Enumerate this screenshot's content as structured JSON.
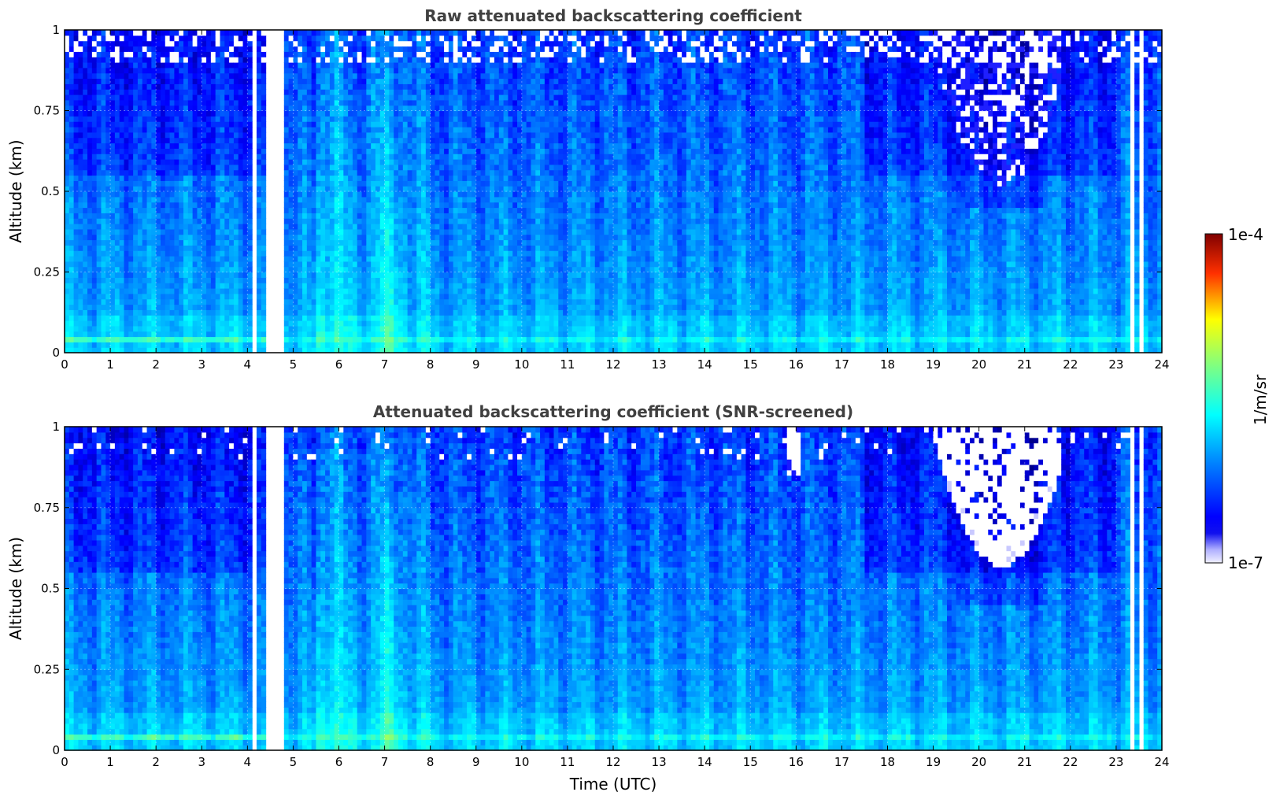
{
  "chart_data": [
    {
      "type": "heatmap",
      "title": "Raw attenuated backscattering coefficient",
      "xlabel": "",
      "ylabel": "Altitude (km)",
      "xlim": [
        0,
        24
      ],
      "ylim": [
        0,
        1
      ],
      "x_ticks": [
        "0",
        "1",
        "2",
        "3",
        "4",
        "5",
        "6",
        "7",
        "8",
        "9",
        "10",
        "11",
        "12",
        "13",
        "14",
        "15",
        "16",
        "17",
        "18",
        "19",
        "20",
        "21",
        "22",
        "23",
        "24"
      ],
      "y_ticks": [
        "0",
        "0.25",
        "0.5",
        "0.75",
        "1"
      ],
      "grid": true,
      "screened": false,
      "data_gaps_utc": [
        [
          4.15,
          4.2
        ],
        [
          4.28,
          4.33
        ],
        [
          4.4,
          4.46
        ],
        [
          4.5,
          4.55
        ],
        [
          4.6,
          4.75
        ],
        [
          23.35,
          23.45
        ],
        [
          23.52,
          23.58
        ]
      ],
      "features": {
        "surface_layer_peak_km": 0.04,
        "enhanced_band_utc": [
          5.5,
          8.0
        ],
        "noise_region": {
          "start_utc": 18.6,
          "end_utc": 21.8,
          "min_altitude_km": 0.52,
          "center_utc": 20.5
        }
      }
    },
    {
      "type": "heatmap",
      "title": "Attenuated backscattering coefficient (SNR-screened)",
      "xlabel": "Time (UTC)",
      "ylabel": "Altitude (km)",
      "xlim": [
        0,
        24
      ],
      "ylim": [
        0,
        1
      ],
      "x_ticks": [
        "0",
        "1",
        "2",
        "3",
        "4",
        "5",
        "6",
        "7",
        "8",
        "9",
        "10",
        "11",
        "12",
        "13",
        "14",
        "15",
        "16",
        "17",
        "18",
        "19",
        "20",
        "21",
        "22",
        "23",
        "24"
      ],
      "y_ticks": [
        "0",
        "0.25",
        "0.5",
        "0.75",
        "1"
      ],
      "grid": true,
      "screened": true,
      "data_gaps_utc": [
        [
          4.15,
          4.2
        ],
        [
          4.28,
          4.33
        ],
        [
          4.4,
          4.46
        ],
        [
          4.5,
          4.55
        ],
        [
          4.6,
          4.75
        ],
        [
          23.35,
          23.45
        ],
        [
          23.52,
          23.58
        ]
      ],
      "features": {
        "surface_layer_peak_km": 0.04,
        "enhanced_band_utc": [
          5.5,
          8.0
        ],
        "screened_region": {
          "start_utc": 18.7,
          "end_utc": 21.8,
          "min_altitude_km": 0.57,
          "center_utc": 20.5
        },
        "screened_patch_utc": [
          15.8,
          16.1
        ]
      }
    }
  ],
  "colorbar": {
    "label": "1/m/sr",
    "min_label": "1e-7",
    "max_label": "1e-4",
    "scale": "log",
    "colormap": "jet"
  }
}
